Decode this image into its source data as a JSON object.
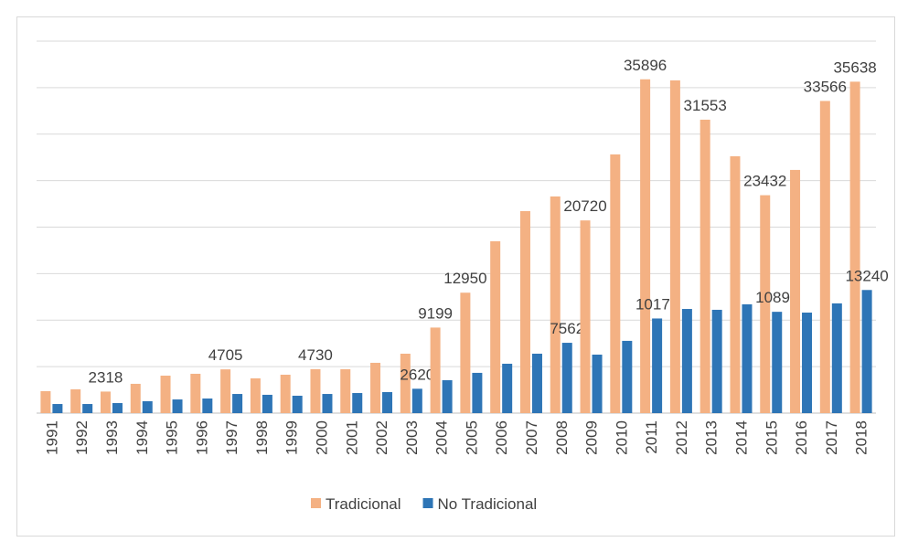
{
  "chart_data": {
    "type": "bar",
    "categories": [
      "1991",
      "1992",
      "1993",
      "1994",
      "1995",
      "1996",
      "1997",
      "1998",
      "1999",
      "2000",
      "2001",
      "2002",
      "2003",
      "2004",
      "2005",
      "2006",
      "2007",
      "2008",
      "2009",
      "2010",
      "2011",
      "2012",
      "2013",
      "2014",
      "2015",
      "2016",
      "2017",
      "2018"
    ],
    "series": [
      {
        "name": "Tradicional",
        "color": "#f4b183",
        "values": [
          2360,
          2560,
          2318,
          3150,
          4030,
          4230,
          4705,
          3740,
          4130,
          4730,
          4720,
          5410,
          6390,
          9199,
          12950,
          18480,
          21720,
          23300,
          20720,
          27820,
          35896,
          35780,
          31553,
          27620,
          23432,
          26150,
          33566,
          35638
        ],
        "value_labels": [
          null,
          null,
          "2318",
          null,
          null,
          null,
          "4705",
          null,
          null,
          "4730",
          null,
          null,
          null,
          "9199",
          "12950",
          null,
          null,
          null,
          "20720",
          null,
          "35896",
          null,
          "31553",
          null,
          "23432",
          null,
          "33566",
          "35638"
        ]
      },
      {
        "name": "No Tradicional",
        "color": "#2e75b6",
        "values": [
          980,
          980,
          1080,
          1280,
          1470,
          1570,
          2060,
          1970,
          1870,
          2060,
          2160,
          2260,
          2620,
          3540,
          4330,
          5310,
          6390,
          7562,
          6290,
          7770,
          10176,
          11200,
          11110,
          11700,
          10895,
          10810,
          11800,
          13240
        ],
        "value_labels": [
          null,
          null,
          null,
          null,
          null,
          null,
          null,
          null,
          null,
          null,
          null,
          null,
          "2620",
          null,
          null,
          null,
          null,
          "7562",
          null,
          null,
          "10176",
          null,
          null,
          null,
          "10895",
          null,
          null,
          "13240"
        ]
      }
    ],
    "ylim": [
      0,
      40000
    ],
    "yticks": [
      0,
      5000,
      10000,
      15000,
      20000,
      25000,
      30000,
      35000,
      40000
    ],
    "ytick_labels": false,
    "grid": true,
    "legend": "bottom"
  }
}
